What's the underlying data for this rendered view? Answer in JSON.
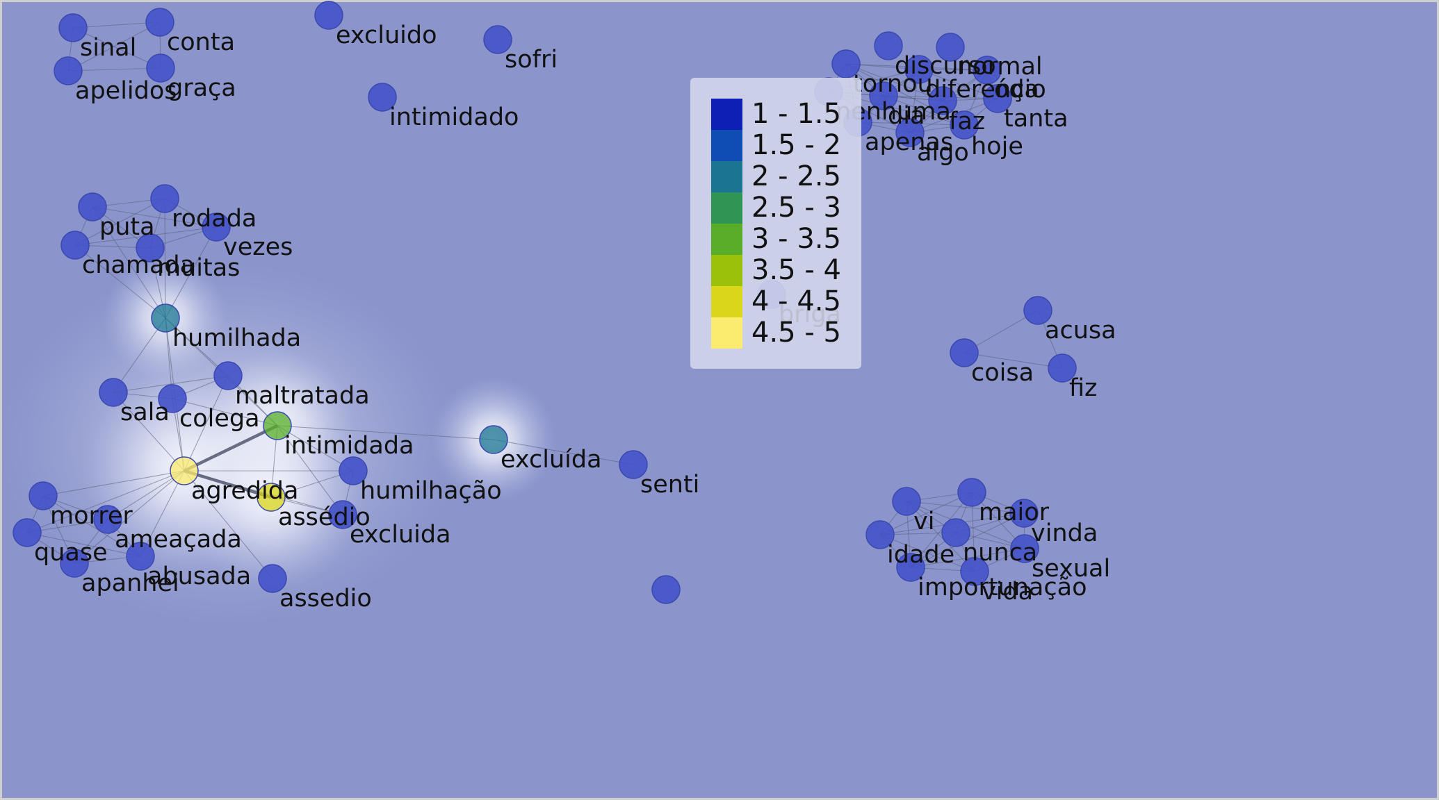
{
  "colors": {
    "background": "#8b95cc",
    "edge": "#5a5f78",
    "node_default": "#4452c9",
    "node_stroke": "#3a48b0"
  },
  "legend": {
    "items": [
      {
        "label": "1 - 1.5",
        "color": "#0d1fb4"
      },
      {
        "label": "1.5 - 2",
        "color": "#0f4cb4"
      },
      {
        "label": "2 - 2.5",
        "color": "#1a7492"
      },
      {
        "label": "2.5 - 3",
        "color": "#2f9454"
      },
      {
        "label": "3 - 3.5",
        "color": "#58ae28"
      },
      {
        "label": "3.5 - 4",
        "color": "#9cc10a"
      },
      {
        "label": "4 - 4.5",
        "color": "#dad61a"
      },
      {
        "label": "4.5 - 5",
        "color": "#fbeb6e"
      }
    ]
  },
  "network": {
    "nodes": [
      {
        "id": "sinal",
        "label": "sinal",
        "score": 1
      },
      {
        "id": "conta",
        "label": "conta",
        "score": 1
      },
      {
        "id": "apelidos",
        "label": "apelidos",
        "score": 1
      },
      {
        "id": "graca",
        "label": "graça",
        "score": 1
      },
      {
        "id": "excluido",
        "label": "excluido",
        "score": 1
      },
      {
        "id": "sofri",
        "label": "sofri",
        "score": 1
      },
      {
        "id": "intimidado",
        "label": "intimidado",
        "score": 1
      },
      {
        "id": "discurso",
        "label": "discurso",
        "score": 1
      },
      {
        "id": "normal",
        "label": "normal",
        "score": 1
      },
      {
        "id": "tornou",
        "label": "tornou",
        "score": 1
      },
      {
        "id": "diferenca",
        "label": "diferença",
        "score": 1
      },
      {
        "id": "odio",
        "label": "ódio",
        "score": 1
      },
      {
        "id": "nenhuma",
        "label": "nenhuma",
        "score": 1
      },
      {
        "id": "dia",
        "label": "dia",
        "score": 1
      },
      {
        "id": "faz",
        "label": "faz",
        "score": 1
      },
      {
        "id": "tanta",
        "label": "tanta",
        "score": 1
      },
      {
        "id": "apenas",
        "label": "apenas",
        "score": 1
      },
      {
        "id": "algo",
        "label": "algo",
        "score": 1
      },
      {
        "id": "hoje",
        "label": "hoje",
        "score": 1
      },
      {
        "id": "puta",
        "label": "puta",
        "score": 1
      },
      {
        "id": "rodada",
        "label": "rodada",
        "score": 1
      },
      {
        "id": "vezes",
        "label": "vezes",
        "score": 1
      },
      {
        "id": "chamada",
        "label": "chamada",
        "score": 1
      },
      {
        "id": "muitas",
        "label": "muitas",
        "score": 1
      },
      {
        "id": "humilhada",
        "label": "humilhada",
        "score": 2.25
      },
      {
        "id": "briga",
        "label": "briga",
        "score": 1
      },
      {
        "id": "acusa",
        "label": "acusa",
        "score": 1
      },
      {
        "id": "coisa",
        "label": "coisa",
        "score": 1
      },
      {
        "id": "fiz",
        "label": "fiz",
        "score": 1
      },
      {
        "id": "sala",
        "label": "sala",
        "score": 1
      },
      {
        "id": "colega",
        "label": "colega",
        "score": 1
      },
      {
        "id": "maltratada",
        "label": "maltratada",
        "score": 1
      },
      {
        "id": "intimidada",
        "label": "intimidada",
        "score": 3.25
      },
      {
        "id": "excluida_acc",
        "label": "excluída",
        "score": 2.25
      },
      {
        "id": "senti",
        "label": "senti",
        "score": 1
      },
      {
        "id": "agredida",
        "label": "agredida",
        "score": 4.75
      },
      {
        "id": "humilhacao",
        "label": "humilhação",
        "score": 1
      },
      {
        "id": "assedio_acc",
        "label": "assédio",
        "score": 4.25
      },
      {
        "id": "excluida",
        "label": "excluida",
        "score": 1
      },
      {
        "id": "morrer",
        "label": "morrer",
        "score": 1
      },
      {
        "id": "ameacada",
        "label": "ameaçada",
        "score": 1
      },
      {
        "id": "quase",
        "label": "quase",
        "score": 1
      },
      {
        "id": "apanhei",
        "label": "apanhei",
        "score": 1
      },
      {
        "id": "abusada",
        "label": "abusada",
        "score": 1
      },
      {
        "id": "assedio",
        "label": "assedio",
        "score": 1
      },
      {
        "id": "vi",
        "label": "vi",
        "score": 1
      },
      {
        "id": "maior",
        "label": "maior",
        "score": 1
      },
      {
        "id": "vinda",
        "label": "vinda",
        "score": 1
      },
      {
        "id": "idade",
        "label": "idade",
        "score": 1
      },
      {
        "id": "nunca",
        "label": "nunca",
        "score": 1
      },
      {
        "id": "sexual",
        "label": "sexual",
        "score": 1
      },
      {
        "id": "importunacao",
        "label": "importunação",
        "score": 1
      },
      {
        "id": "vida",
        "label": "vida",
        "score": 1
      },
      {
        "id": "unlabeled_bottom",
        "label": "",
        "score": 1
      }
    ],
    "edges": [
      [
        "sinal",
        "conta"
      ],
      [
        "sinal",
        "apelidos"
      ],
      [
        "sinal",
        "graca"
      ],
      [
        "conta",
        "graca"
      ],
      [
        "apelidos",
        "graca"
      ],
      [
        "apelidos",
        "conta"
      ],
      [
        "discurso",
        "normal"
      ],
      [
        "discurso",
        "tornou"
      ],
      [
        "discurso",
        "diferenca"
      ],
      [
        "discurso",
        "odio"
      ],
      [
        "discurso",
        "nenhuma"
      ],
      [
        "discurso",
        "dia"
      ],
      [
        "discurso",
        "faz"
      ],
      [
        "discurso",
        "apenas"
      ],
      [
        "discurso",
        "algo"
      ],
      [
        "normal",
        "tornou"
      ],
      [
        "normal",
        "diferenca"
      ],
      [
        "normal",
        "odio"
      ],
      [
        "normal",
        "faz"
      ],
      [
        "normal",
        "algo"
      ],
      [
        "tornou",
        "diferenca"
      ],
      [
        "tornou",
        "nenhuma"
      ],
      [
        "tornou",
        "dia"
      ],
      [
        "tornou",
        "apenas"
      ],
      [
        "tornou",
        "faz"
      ],
      [
        "diferenca",
        "odio"
      ],
      [
        "diferenca",
        "dia"
      ],
      [
        "diferenca",
        "faz"
      ],
      [
        "diferenca",
        "algo"
      ],
      [
        "diferenca",
        "nenhuma"
      ],
      [
        "odio",
        "faz"
      ],
      [
        "odio",
        "algo"
      ],
      [
        "odio",
        "dia"
      ],
      [
        "nenhuma",
        "dia"
      ],
      [
        "nenhuma",
        "apenas"
      ],
      [
        "nenhuma",
        "algo"
      ],
      [
        "dia",
        "apenas"
      ],
      [
        "dia",
        "algo"
      ],
      [
        "dia",
        "faz"
      ],
      [
        "faz",
        "algo"
      ],
      [
        "apenas",
        "algo"
      ],
      [
        "apenas",
        "faz"
      ],
      [
        "nenhuma",
        "faz"
      ],
      [
        "puta",
        "rodada"
      ],
      [
        "puta",
        "chamada"
      ],
      [
        "puta",
        "muitas"
      ],
      [
        "puta",
        "vezes"
      ],
      [
        "rodada",
        "chamada"
      ],
      [
        "rodada",
        "muitas"
      ],
      [
        "rodada",
        "vezes"
      ],
      [
        "chamada",
        "muitas"
      ],
      [
        "chamada",
        "vezes"
      ],
      [
        "muitas",
        "vezes"
      ],
      [
        "humilhada",
        "puta"
      ],
      [
        "humilhada",
        "rodada"
      ],
      [
        "humilhada",
        "chamada"
      ],
      [
        "humilhada",
        "muitas"
      ],
      [
        "humilhada",
        "vezes"
      ],
      [
        "humilhada",
        "sala"
      ],
      [
        "humilhada",
        "colega"
      ],
      [
        "humilhada",
        "maltratada"
      ],
      [
        "humilhada",
        "agredida"
      ],
      [
        "humilhada",
        "intimidada"
      ],
      [
        "sala",
        "colega"
      ],
      [
        "sala",
        "maltratada"
      ],
      [
        "sala",
        "agredida"
      ],
      [
        "colega",
        "maltratada"
      ],
      [
        "colega",
        "intimidada"
      ],
      [
        "colega",
        "agredida"
      ],
      [
        "maltratada",
        "intimidada"
      ],
      [
        "maltratada",
        "agredida"
      ],
      [
        "intimidada",
        "agredida",
        3
      ],
      [
        "intimidada",
        "excluida_acc"
      ],
      [
        "intimidada",
        "assedio_acc"
      ],
      [
        "intimidada",
        "excluida"
      ],
      [
        "intimidada",
        "humilhacao"
      ],
      [
        "excluida_acc",
        "senti"
      ],
      [
        "agredida",
        "assedio_acc",
        3
      ],
      [
        "agredida",
        "humilhacao"
      ],
      [
        "agredida",
        "excluida"
      ],
      [
        "agredida",
        "morrer"
      ],
      [
        "agredida",
        "ameacada"
      ],
      [
        "agredida",
        "quase"
      ],
      [
        "agredida",
        "apanhei"
      ],
      [
        "agredida",
        "abusada"
      ],
      [
        "agredida",
        "assedio"
      ],
      [
        "assedio_acc",
        "humilhacao"
      ],
      [
        "assedio_acc",
        "excluida"
      ],
      [
        "humilhacao",
        "excluida"
      ],
      [
        "morrer",
        "ameacada"
      ],
      [
        "morrer",
        "quase"
      ],
      [
        "morrer",
        "apanhei"
      ],
      [
        "morrer",
        "abusada"
      ],
      [
        "ameacada",
        "quase"
      ],
      [
        "ameacada",
        "abusada"
      ],
      [
        "quase",
        "apanhei"
      ],
      [
        "quase",
        "abusada"
      ],
      [
        "apanhei",
        "abusada"
      ],
      [
        "ameacada",
        "apanhei"
      ],
      [
        "acusa",
        "coisa"
      ],
      [
        "acusa",
        "fiz"
      ],
      [
        "coisa",
        "fiz"
      ],
      [
        "vi",
        "maior"
      ],
      [
        "vi",
        "vinda"
      ],
      [
        "vi",
        "idade"
      ],
      [
        "vi",
        "nunca"
      ],
      [
        "vi",
        "sexual"
      ],
      [
        "vi",
        "importunacao"
      ],
      [
        "vi",
        "vida"
      ],
      [
        "maior",
        "vinda"
      ],
      [
        "maior",
        "idade"
      ],
      [
        "maior",
        "nunca"
      ],
      [
        "maior",
        "sexual"
      ],
      [
        "maior",
        "importunacao"
      ],
      [
        "maior",
        "vida"
      ],
      [
        "vinda",
        "idade"
      ],
      [
        "vinda",
        "nunca"
      ],
      [
        "vinda",
        "sexual"
      ],
      [
        "vinda",
        "importunacao"
      ],
      [
        "idade",
        "nunca"
      ],
      [
        "idade",
        "importunacao"
      ],
      [
        "idade",
        "vida"
      ],
      [
        "nunca",
        "sexual"
      ],
      [
        "nunca",
        "importunacao"
      ],
      [
        "nunca",
        "vida"
      ],
      [
        "sexual",
        "importunacao"
      ],
      [
        "sexual",
        "vida"
      ],
      [
        "importunacao",
        "vida"
      ]
    ]
  }
}
